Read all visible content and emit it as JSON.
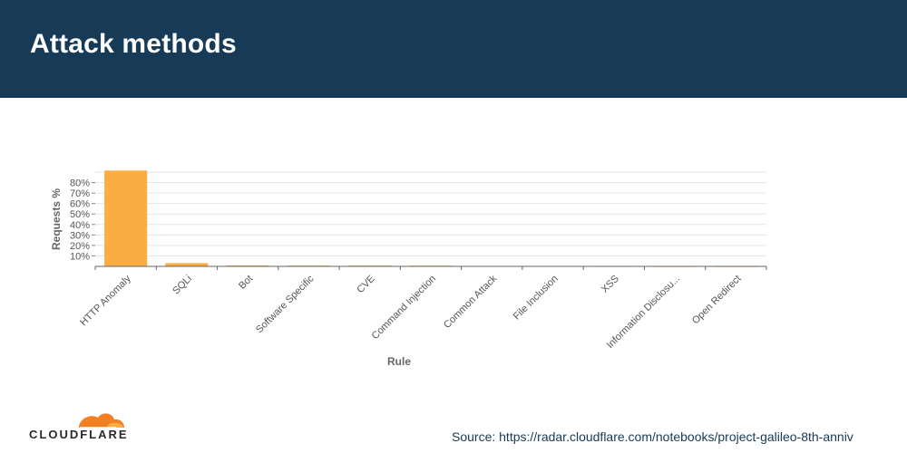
{
  "header": {
    "title": "Attack methods"
  },
  "chart_data": {
    "type": "bar",
    "xlabel": "Rule",
    "ylabel": "Requests %",
    "categories": [
      "HTTP Anomaly",
      "SQLi",
      "Bot",
      "Software Specific",
      "CVE",
      "Command Injection",
      "Common Attack",
      "File Inclusion",
      "XSS",
      "Information Disclosu...",
      "Open Redirect"
    ],
    "values": [
      91.5,
      3.1,
      0.9,
      0.8,
      0.8,
      0.7,
      0.4,
      0.3,
      0.2,
      0.1,
      0.1
    ],
    "yticks": [
      "10%",
      "20%",
      "30%",
      "40%",
      "50%",
      "60%",
      "70%",
      "80%"
    ],
    "ylim": [
      0,
      90
    ],
    "grid": true,
    "bar_color": "#fbad41"
  },
  "footer": {
    "brand": "CLOUDFLARE",
    "source": "Source: https://radar.cloudflare.com/notebooks/project-galileo-8th-anniv"
  },
  "colors": {
    "header_bg": "#173a56",
    "brand_orange": "#f38020",
    "brand_light_orange": "#fbad41"
  }
}
